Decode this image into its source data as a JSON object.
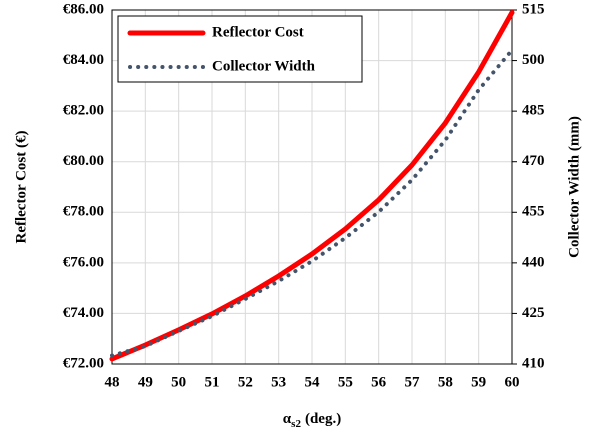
{
  "chart_data": {
    "type": "line",
    "x_label": {
      "symbol": "α",
      "subscript": "s2",
      "unit": "(deg.)"
    },
    "y_label": "Reflector Cost (€)",
    "y2_label": "Collector Width (mm)",
    "x": [
      48,
      49,
      50,
      51,
      52,
      53,
      54,
      55,
      56,
      57,
      58,
      59,
      60
    ],
    "series": [
      {
        "name": "Reflector Cost",
        "color": "#ff0000",
        "axis": "y",
        "values": [
          72.2,
          72.75,
          73.35,
          73.98,
          74.69,
          75.48,
          76.35,
          77.34,
          78.49,
          79.87,
          81.53,
          83.55,
          85.9
        ]
      },
      {
        "name": "Collector Width",
        "color": "#44546a",
        "axis": "y2",
        "values": [
          412.5,
          415.3,
          419.8,
          424.2,
          429.3,
          434.6,
          440.5,
          447.4,
          455.1,
          464.6,
          476.4,
          491.3,
          503.1
        ]
      }
    ],
    "xlim": [
      48,
      60
    ],
    "xticks": [
      48,
      49,
      50,
      51,
      52,
      53,
      54,
      55,
      56,
      57,
      58,
      59,
      60
    ],
    "ylim": [
      72,
      86
    ],
    "yticks": [
      {
        "value": 72,
        "label": "€72.00"
      },
      {
        "value": 74,
        "label": "€74.00"
      },
      {
        "value": 76,
        "label": "€76.00"
      },
      {
        "value": 78,
        "label": "€78.00"
      },
      {
        "value": 80,
        "label": "€80.00"
      },
      {
        "value": 82,
        "label": "€82.00"
      },
      {
        "value": 84,
        "label": "€84.00"
      },
      {
        "value": 86,
        "label": "€86.00"
      }
    ],
    "y2lim": [
      410,
      515
    ],
    "y2ticks": [
      410,
      425,
      440,
      455,
      470,
      485,
      500,
      515
    ],
    "grid": true,
    "legend": "upper left"
  }
}
